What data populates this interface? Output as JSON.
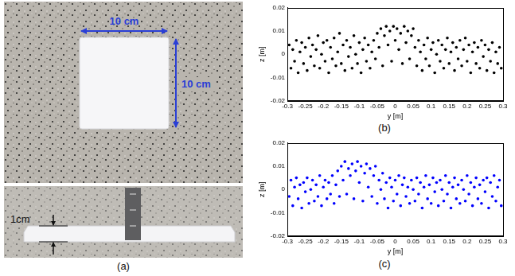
{
  "panel_labels": {
    "a": "(a)",
    "b": "(b)",
    "c": "(c)"
  },
  "photo": {
    "width_label": "10 cm",
    "height_label": "10 cm",
    "thickness_label": "1cm"
  },
  "chart_data": [
    {
      "type": "scatter",
      "x_label": "y [m]",
      "y_label": "z [m]",
      "color": "#000000",
      "marker": "circle",
      "grid": false,
      "xlim": [
        -0.3,
        0.3
      ],
      "xticks": [
        -0.3,
        -0.25,
        -0.2,
        -0.15,
        -0.1,
        -0.05,
        0,
        0.05,
        0.1,
        0.15,
        0.2,
        0.25,
        0.3
      ],
      "ylim": [
        -0.02,
        0.02
      ],
      "yticks": [
        -0.02,
        -0.01,
        0,
        0.01,
        0.02
      ],
      "x": [
        -0.295,
        -0.29,
        -0.285,
        -0.28,
        -0.275,
        -0.27,
        -0.265,
        -0.26,
        -0.255,
        -0.25,
        -0.245,
        -0.24,
        -0.235,
        -0.23,
        -0.225,
        -0.22,
        -0.215,
        -0.21,
        -0.205,
        -0.2,
        -0.195,
        -0.19,
        -0.185,
        -0.18,
        -0.175,
        -0.17,
        -0.165,
        -0.16,
        -0.155,
        -0.15,
        -0.145,
        -0.14,
        -0.135,
        -0.13,
        -0.125,
        -0.12,
        -0.115,
        -0.11,
        -0.105,
        -0.1,
        -0.095,
        -0.09,
        -0.085,
        -0.08,
        -0.075,
        -0.07,
        -0.065,
        -0.06,
        -0.055,
        -0.05,
        -0.045,
        -0.04,
        -0.035,
        -0.03,
        -0.025,
        -0.02,
        -0.015,
        -0.01,
        -0.005,
        0,
        0.005,
        0.01,
        0.015,
        0.02,
        0.025,
        0.03,
        0.035,
        0.04,
        0.045,
        0.05,
        0.055,
        0.06,
        0.065,
        0.07,
        0.075,
        0.08,
        0.085,
        0.09,
        0.095,
        0.1,
        0.105,
        0.11,
        0.115,
        0.12,
        0.125,
        0.13,
        0.135,
        0.14,
        0.145,
        0.15,
        0.155,
        0.16,
        0.165,
        0.17,
        0.175,
        0.18,
        0.185,
        0.19,
        0.195,
        0.2,
        0.205,
        0.21,
        0.215,
        0.22,
        0.225,
        0.23,
        0.235,
        0.24,
        0.245,
        0.25,
        0.255,
        0.26,
        0.265,
        0.27,
        0.275,
        0.28,
        0.285,
        0.29,
        0.295
      ],
      "values": [
        0.004,
        -0.006,
        0.002,
        -0.003,
        0.006,
        -0.008,
        0.001,
        0.005,
        -0.004,
        0.003,
        -0.007,
        0.007,
        -0.001,
        0.004,
        -0.005,
        0.002,
        0.008,
        -0.006,
        0.0,
        0.005,
        -0.003,
        0.006,
        -0.008,
        0.003,
        -0.002,
        0.007,
        -0.005,
        0.001,
        0.009,
        -0.004,
        0.004,
        -0.007,
        0.006,
        -0.001,
        0.003,
        -0.006,
        0.008,
        0.0,
        -0.004,
        0.005,
        -0.008,
        0.002,
        0.007,
        -0.003,
        0.004,
        -0.006,
        0.001,
        0.006,
        -0.002,
        0.009,
        0.003,
        0.011,
        -0.005,
        0.008,
        0.012,
        0.004,
        0.01,
        -0.003,
        0.012,
        0.006,
        0.011,
        0.002,
        0.009,
        -0.004,
        0.012,
        0.005,
        0.01,
        -0.002,
        0.008,
        0.011,
        0.003,
        -0.005,
        0.006,
        0.001,
        -0.007,
        0.004,
        -0.002,
        0.007,
        -0.005,
        0.002,
        0.005,
        -0.008,
        0.0,
        0.006,
        -0.003,
        0.004,
        -0.006,
        0.002,
        0.007,
        -0.004,
        0.001,
        0.005,
        -0.007,
        0.003,
        -0.002,
        0.006,
        -0.005,
        0.002,
        0.007,
        -0.003,
        0.004,
        -0.008,
        0.001,
        0.005,
        -0.004,
        0.003,
        -0.006,
        0.006,
        -0.001,
        0.004,
        -0.007,
        0.002,
        -0.003,
        0.005,
        -0.008,
        0.001,
        -0.004,
        0.003,
        -0.006
      ]
    },
    {
      "type": "scatter",
      "x_label": "y [m]",
      "y_label": "z [m]",
      "color": "#0000ff",
      "marker": "circle",
      "grid": false,
      "xlim": [
        -0.3,
        0.3
      ],
      "xticks": [
        -0.3,
        -0.25,
        -0.2,
        -0.15,
        -0.1,
        -0.05,
        0,
        0.05,
        0.1,
        0.15,
        0.2,
        0.25,
        0.3
      ],
      "ylim": [
        -0.02,
        0.02
      ],
      "yticks": [
        -0.02,
        -0.01,
        0,
        0.01,
        0.02
      ],
      "x": [
        -0.295,
        -0.29,
        -0.285,
        -0.28,
        -0.275,
        -0.27,
        -0.265,
        -0.26,
        -0.255,
        -0.25,
        -0.245,
        -0.24,
        -0.235,
        -0.23,
        -0.225,
        -0.22,
        -0.215,
        -0.21,
        -0.205,
        -0.2,
        -0.195,
        -0.19,
        -0.185,
        -0.18,
        -0.175,
        -0.17,
        -0.165,
        -0.16,
        -0.155,
        -0.15,
        -0.145,
        -0.14,
        -0.135,
        -0.13,
        -0.125,
        -0.12,
        -0.115,
        -0.11,
        -0.105,
        -0.1,
        -0.095,
        -0.09,
        -0.085,
        -0.08,
        -0.075,
        -0.07,
        -0.065,
        -0.06,
        -0.055,
        -0.05,
        -0.045,
        -0.04,
        -0.035,
        -0.03,
        -0.025,
        -0.02,
        -0.015,
        -0.01,
        -0.005,
        0,
        0.005,
        0.01,
        0.015,
        0.02,
        0.025,
        0.03,
        0.035,
        0.04,
        0.045,
        0.05,
        0.055,
        0.06,
        0.065,
        0.07,
        0.075,
        0.08,
        0.085,
        0.09,
        0.095,
        0.1,
        0.105,
        0.11,
        0.115,
        0.12,
        0.125,
        0.13,
        0.135,
        0.14,
        0.145,
        0.15,
        0.155,
        0.16,
        0.165,
        0.17,
        0.175,
        0.18,
        0.185,
        0.19,
        0.195,
        0.2,
        0.205,
        0.21,
        0.215,
        0.22,
        0.225,
        0.23,
        0.235,
        0.24,
        0.245,
        0.25,
        0.255,
        0.26,
        0.265,
        0.27,
        0.275,
        0.28,
        0.285,
        0.29,
        0.295
      ],
      "values": [
        -0.003,
        0.004,
        -0.007,
        0.001,
        0.005,
        -0.004,
        0.002,
        -0.008,
        0.003,
        -0.001,
        0.005,
        -0.006,
        0.0,
        0.004,
        -0.005,
        0.002,
        -0.003,
        0.006,
        -0.007,
        0.001,
        0.004,
        -0.004,
        0.003,
        -0.002,
        0.006,
        -0.006,
        0.002,
        0.008,
        -0.003,
        0.01,
        0.004,
        0.012,
        -0.002,
        0.009,
        0.006,
        0.011,
        -0.004,
        0.008,
        0.012,
        0.003,
        0.01,
        -0.005,
        0.007,
        0.011,
        0.001,
        0.009,
        -0.003,
        0.006,
        0.01,
        -0.006,
        0.004,
        0.0,
        0.007,
        -0.004,
        0.003,
        -0.008,
        0.005,
        0.001,
        -0.005,
        0.004,
        -0.002,
        0.006,
        -0.007,
        0.002,
        0.005,
        -0.003,
        0.001,
        -0.006,
        0.004,
        0.0,
        -0.005,
        0.005,
        -0.002,
        0.003,
        -0.008,
        0.001,
        0.006,
        -0.004,
        0.002,
        -0.006,
        0.005,
        -0.001,
        0.003,
        -0.007,
        0.004,
        0.0,
        -0.005,
        0.006,
        -0.002,
        0.003,
        -0.008,
        0.001,
        0.005,
        -0.004,
        0.002,
        -0.006,
        0.004,
        0.0,
        -0.005,
        0.006,
        -0.002,
        0.003,
        -0.007,
        0.001,
        0.005,
        -0.004,
        0.002,
        -0.006,
        0.004,
        -0.001,
        0.005,
        -0.008,
        0.003,
        -0.003,
        0.006,
        -0.005,
        0.001,
        0.004,
        -0.007
      ]
    }
  ]
}
